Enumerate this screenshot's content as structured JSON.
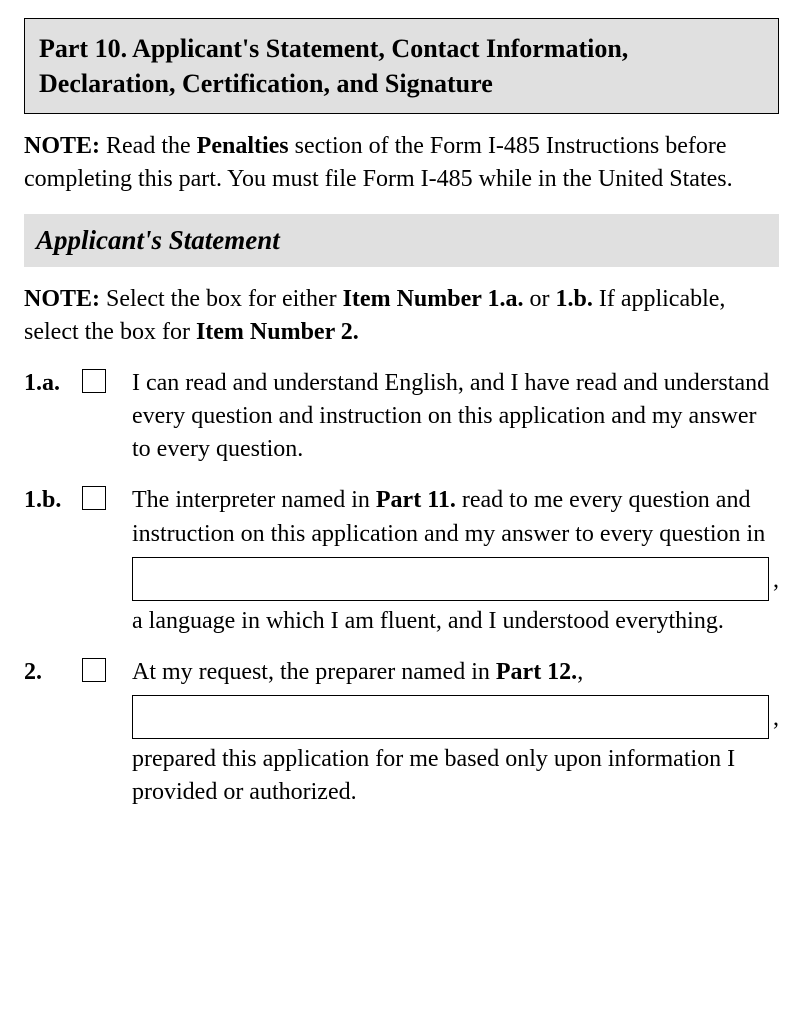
{
  "header": {
    "title": "Part 10.  Applicant's Statement, Contact Information, Declaration, Certification, and Signature"
  },
  "note1": {
    "label": "NOTE:",
    "pre": "Read the ",
    "bold1": "Penalties",
    "post": " section of the Form I-485 Instructions before completing this part.  You must file Form I-485 while in the United States."
  },
  "section_title": "Applicant's Statement",
  "note2": {
    "label": "NOTE:",
    "pre": "Select the box for either ",
    "bold1": "Item Number 1.a.",
    "mid1": " or ",
    "bold2": "1.b.",
    "mid2": "  If applicable, select the box for ",
    "bold3": "Item Number 2."
  },
  "items": {
    "a1": {
      "num": "1.a.",
      "text": "I can read and understand English, and I have read and understand every question and instruction on this application and my answer to every question."
    },
    "b1": {
      "num": "1.b.",
      "pre": "The interpreter named in ",
      "bold": "Part 11.",
      "mid": " read to me every question and instruction on this application and my answer to every question in",
      "comma": ",",
      "post": "a language in which I am fluent, and I understood everything."
    },
    "c2": {
      "num": "2.",
      "pre": "At my request, the preparer named in ",
      "bold": "Part 12.",
      "comma1": ",",
      "comma2": ",",
      "post": "prepared this application for me based only upon information I provided or authorized."
    }
  },
  "inputs": {
    "language": "",
    "preparer": ""
  }
}
